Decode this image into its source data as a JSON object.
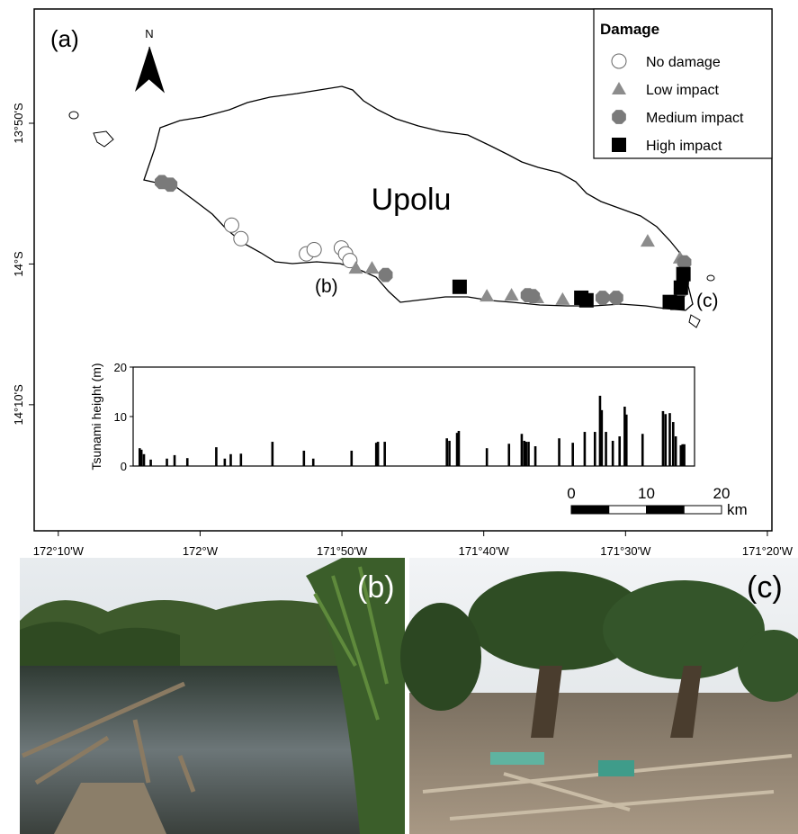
{
  "chart_data": [
    {
      "type": "map",
      "panel_label": "(a)",
      "north_label": "N",
      "place_label": "Upolu",
      "annotations": [
        "(b)",
        "(c)"
      ],
      "xlim": [
        -172.195,
        -171.328
      ],
      "ylim": [
        -14.316,
        -13.698
      ],
      "xticks": [
        {
          "value": -172.16667,
          "label": "172°10'W"
        },
        {
          "value": -172,
          "label": "172°W"
        },
        {
          "value": -171.83333,
          "label": "171°50'W"
        },
        {
          "value": -171.66667,
          "label": "171°40'W"
        },
        {
          "value": -171.5,
          "label": "171°30'W"
        },
        {
          "value": -171.33333,
          "label": "171°20'W"
        }
      ],
      "yticks": [
        {
          "value": -13.83333,
          "label": "13°50'S"
        },
        {
          "value": -14,
          "label": "14°S"
        },
        {
          "value": -14.16667,
          "label": "14°10'S"
        }
      ],
      "legend_title": "Damage",
      "legend_position": "upper right",
      "series": [
        {
          "name": "No damage",
          "marker": "circle",
          "color": "#ffffff",
          "lon": [
            -171.963,
            -171.952,
            -171.875,
            -171.866,
            -171.834,
            -171.829,
            -171.824
          ],
          "lat": [
            -13.954,
            -13.97,
            -13.988,
            -13.983,
            -13.981,
            -13.988,
            -13.996
          ]
        },
        {
          "name": "Low impact",
          "marker": "triangle",
          "color": "#8c8c8c",
          "lon": [
            -171.817,
            -171.798,
            -171.663,
            -171.634,
            -171.604,
            -171.574,
            -171.474,
            -171.436
          ],
          "lat": [
            -14.005,
            -14.005,
            -14.038,
            -14.037,
            -14.04,
            -14.042,
            -13.973,
            -13.993
          ]
        },
        {
          "name": "Medium impact",
          "marker": "octagon",
          "color": "#7a7a7a",
          "lon": [
            -172.045,
            -172.035,
            -171.782,
            -171.615,
            -171.609,
            -171.527,
            -171.511,
            -171.431,
            -171.435
          ],
          "lat": [
            -13.903,
            -13.906,
            -14.013,
            -14.037,
            -14.038,
            -14.04,
            -14.04,
            -13.998,
            -14.032
          ]
        },
        {
          "name": "High impact",
          "marker": "square",
          "color": "#000000",
          "lon": [
            -171.695,
            -171.552,
            -171.546,
            -171.432,
            -171.435,
            -171.448,
            -171.439
          ],
          "lat": [
            -14.027,
            -14.04,
            -14.043,
            -14.012,
            -14.028,
            -14.045,
            -14.046
          ]
        }
      ],
      "scale_bar": {
        "ticks": [
          0,
          10,
          20
        ],
        "unit": "km"
      }
    },
    {
      "type": "bar",
      "y_label": "Tsunami height (m)",
      "ylim": [
        0,
        20
      ],
      "yticks": [
        0,
        10,
        20
      ],
      "color": "#000000",
      "x": [
        -172.071,
        -172.069,
        -172.066,
        -172.058,
        -172.039,
        -172.03,
        -172.015,
        -171.981,
        -171.971,
        -171.964,
        -171.952,
        -171.915,
        -171.878,
        -171.867,
        -171.822,
        -171.793,
        -171.791,
        -171.783,
        -171.71,
        -171.707,
        -171.698,
        -171.696,
        -171.663,
        -171.637,
        -171.622,
        -171.619,
        -171.617,
        -171.614,
        -171.606,
        -171.578,
        -171.562,
        -171.548,
        -171.536,
        -171.53,
        -171.528,
        -171.523,
        -171.515,
        -171.507,
        -171.501,
        -171.499,
        -171.48,
        -171.456,
        -171.453,
        -171.448,
        -171.444,
        -171.441,
        -171.435,
        -171.433,
        -171.431
      ],
      "values": [
        3.6,
        3.3,
        2.4,
        1.3,
        1.5,
        2.2,
        1.6,
        3.8,
        1.5,
        2.4,
        2.5,
        4.9,
        3.1,
        1.5,
        3.1,
        4.7,
        4.9,
        4.9,
        5.6,
        5.1,
        6.7,
        7.1,
        3.6,
        4.5,
        6.5,
        5.1,
        4.9,
        4.9,
        4.0,
        5.6,
        4.7,
        6.9,
        6.9,
        14.2,
        11.3,
        6.9,
        5.1,
        6.0,
        12.0,
        10.4,
        6.5,
        11.1,
        10.5,
        10.7,
        8.9,
        6.0,
        4.2,
        4.4,
        4.4
      ]
    }
  ],
  "photos": [
    {
      "label": "(b)"
    },
    {
      "label": "(c)"
    }
  ]
}
